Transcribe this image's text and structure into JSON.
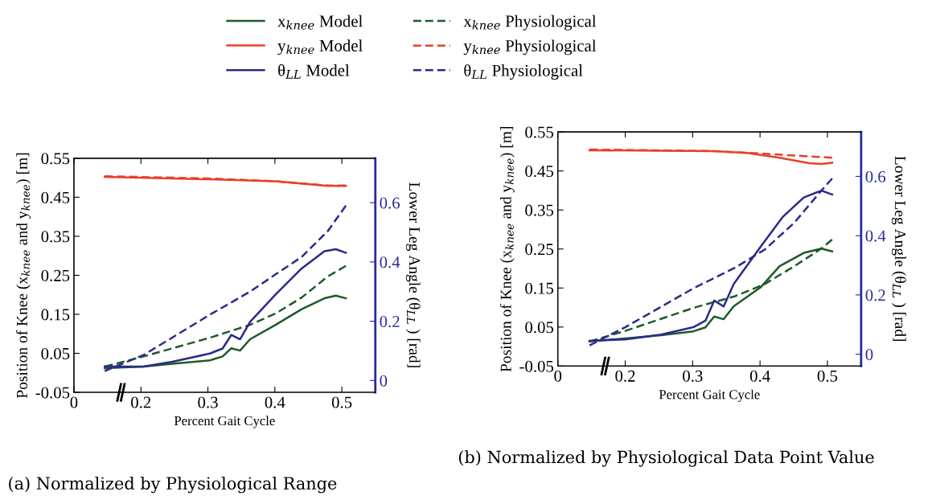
{
  "chart_data": [
    {
      "type": "line",
      "title": "(a) Normalized by Physiological Range",
      "xlabel": "Percent Gait Cycle",
      "ylabel": "Position of Knee (x$_{knee}$ and y$_{knee}$) [m]",
      "y2label": "Lower Leg Angle (θ$_{LL}$ ) [rad]",
      "xlim": [
        0.1,
        0.55
      ],
      "xticks": [
        {
          "value": 0.1,
          "label": "0"
        },
        0.2,
        0.3,
        0.4,
        0.5
      ],
      "ylim": [
        -0.05,
        0.55
      ],
      "yticks": [
        -0.05,
        0.05,
        0.15,
        0.25,
        0.35,
        0.45,
        0.55
      ],
      "y2lim": [
        -0.04,
        0.75
      ],
      "y2ticks": [
        0,
        0.2,
        0.4,
        0.6
      ],
      "grid": false,
      "legend": "top",
      "marker": "none",
      "series": [
        {
          "name": "x$_{knee}$ Model",
          "color": "#1e5a2a",
          "line_style": "solid",
          "x": [
            0.146,
            0.204,
            0.247,
            0.303,
            0.322,
            0.335,
            0.348,
            0.363,
            0.401,
            0.44,
            0.474,
            0.491,
            0.506
          ],
          "values": [
            0.012,
            0.016,
            0.023,
            0.032,
            0.042,
            0.063,
            0.057,
            0.086,
            0.123,
            0.163,
            0.191,
            0.198,
            0.191
          ]
        },
        {
          "name": "y$_{knee}$ Model",
          "color": "#e8402a",
          "line_style": "solid",
          "x": [
            0.146,
            0.303,
            0.401,
            0.479,
            0.506
          ],
          "values": [
            0.502,
            0.496,
            0.491,
            0.479,
            0.479
          ]
        },
        {
          "name": "θ$_{LL}$ Model",
          "color": "#2a2a8c",
          "line_style": "solid",
          "axis": "y2",
          "x": [
            0.146,
            0.204,
            0.247,
            0.303,
            0.322,
            0.335,
            0.348,
            0.363,
            0.401,
            0.44,
            0.474,
            0.491,
            0.506
          ],
          "values": [
            0.047,
            0.047,
            0.063,
            0.091,
            0.108,
            0.154,
            0.139,
            0.198,
            0.29,
            0.378,
            0.436,
            0.443,
            0.431
          ]
        },
        {
          "name": "x$_{knee}$ Physiological",
          "color": "#1e5a2a",
          "line_style": "dashed",
          "x": [
            0.146,
            0.204,
            0.303,
            0.363,
            0.401,
            0.44,
            0.479,
            0.506
          ],
          "values": [
            0.016,
            0.042,
            0.09,
            0.123,
            0.152,
            0.193,
            0.247,
            0.274
          ]
        },
        {
          "name": "y$_{knee}$ Physiological",
          "color": "#e8402a",
          "line_style": "dashed",
          "x": [
            0.146,
            0.303,
            0.401,
            0.479,
            0.506
          ],
          "values": [
            0.504,
            0.498,
            0.491,
            0.48,
            0.48
          ]
        },
        {
          "name": "θ$_{LL}$ Physiological",
          "color": "#2a2a8c",
          "line_style": "dashed",
          "axis": "y2",
          "x": [
            0.146,
            0.204,
            0.303,
            0.363,
            0.401,
            0.44,
            0.479,
            0.506
          ],
          "values": [
            0.032,
            0.086,
            0.222,
            0.3,
            0.358,
            0.417,
            0.504,
            0.59
          ]
        }
      ]
    },
    {
      "type": "line",
      "title": "(b) Normalized by Physiological Data Point Value",
      "xlabel": "Percent Gait Cycle",
      "ylabel": "Position of Knee (x$_{knee}$ and y$_{knee}$) [m]",
      "y2label": "Lower Leg Angle (θ$_{LL}$ ) [rad]",
      "xlim": [
        0.1,
        0.55
      ],
      "xticks": [
        {
          "value": 0.1,
          "label": "0"
        },
        0.2,
        0.3,
        0.4,
        0.5
      ],
      "ylim": [
        -0.05,
        0.55
      ],
      "yticks": [
        -0.05,
        0.05,
        0.15,
        0.25,
        0.35,
        0.45,
        0.55
      ],
      "y2lim": [
        -0.04,
        0.75
      ],
      "y2ticks": [
        0,
        0.2,
        0.4,
        0.6
      ],
      "grid": false,
      "marker": "none",
      "series": [
        {
          "color": "#1e5a2a",
          "line_style": "solid",
          "x": [
            0.147,
            0.2,
            0.253,
            0.301,
            0.319,
            0.332,
            0.346,
            0.361,
            0.401,
            0.429,
            0.465,
            0.491,
            0.507
          ],
          "values": [
            0.013,
            0.021,
            0.029,
            0.039,
            0.049,
            0.077,
            0.07,
            0.103,
            0.152,
            0.206,
            0.24,
            0.251,
            0.244
          ]
        },
        {
          "color": "#e8402a",
          "line_style": "solid",
          "x": [
            0.147,
            0.332,
            0.381,
            0.429,
            0.473,
            0.491,
            0.507
          ],
          "values": [
            0.503,
            0.501,
            0.496,
            0.484,
            0.47,
            0.468,
            0.471
          ]
        },
        {
          "color": "#2a2a8c",
          "line_style": "solid",
          "axis": "y2",
          "x": [
            0.147,
            0.2,
            0.253,
            0.301,
            0.319,
            0.332,
            0.346,
            0.361,
            0.401,
            0.434,
            0.465,
            0.491,
            0.507
          ],
          "values": [
            0.045,
            0.05,
            0.066,
            0.091,
            0.113,
            0.181,
            0.161,
            0.237,
            0.363,
            0.464,
            0.529,
            0.552,
            0.539
          ]
        },
        {
          "color": "#1e5a2a",
          "line_style": "dashed",
          "x": [
            0.147,
            0.2,
            0.301,
            0.363,
            0.407,
            0.451,
            0.491,
            0.507
          ],
          "values": [
            0.013,
            0.04,
            0.099,
            0.129,
            0.16,
            0.206,
            0.251,
            0.274
          ]
        },
        {
          "color": "#e8402a",
          "line_style": "dashed",
          "x": [
            0.147,
            0.332,
            0.407,
            0.507
          ],
          "values": [
            0.505,
            0.501,
            0.494,
            0.484
          ]
        },
        {
          "color": "#2a2a8c",
          "line_style": "dashed",
          "axis": "y2",
          "x": [
            0.147,
            0.2,
            0.301,
            0.363,
            0.407,
            0.451,
            0.491,
            0.507
          ],
          "values": [
            0.03,
            0.091,
            0.222,
            0.292,
            0.353,
            0.444,
            0.552,
            0.593
          ]
        }
      ]
    }
  ]
}
